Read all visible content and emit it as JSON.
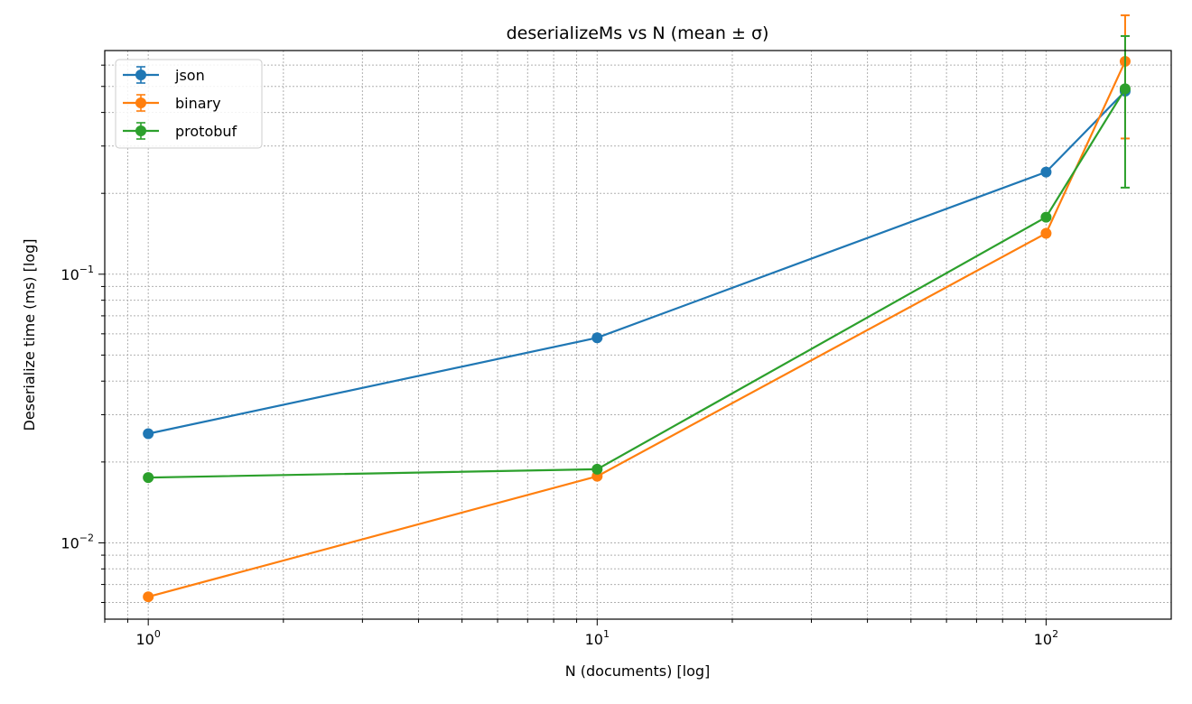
{
  "chart_data": {
    "type": "line",
    "title": "deserializeMs vs N (mean ± σ)",
    "xlabel": "N (documents) [log]",
    "ylabel": "Deserialize time (ms) [log]",
    "xscale": "log",
    "yscale": "log",
    "xlim": [
      0.8,
      190
    ],
    "ylim": [
      0.0052,
      0.68
    ],
    "x_major_ticks": [
      {
        "value": 1,
        "base": "10",
        "exp": "0"
      },
      {
        "value": 10,
        "base": "10",
        "exp": "1"
      },
      {
        "value": 100,
        "base": "10",
        "exp": "2"
      }
    ],
    "y_major_ticks": [
      {
        "value": 0.01,
        "base": "10",
        "exp": "−2"
      },
      {
        "value": 0.1,
        "base": "10",
        "exp": "−1"
      }
    ],
    "grid": true,
    "legend_position": "top-left",
    "series": [
      {
        "name": "json",
        "color": "#1f77b4",
        "x": [
          1,
          10,
          100,
          150
        ],
        "y": [
          0.0255,
          0.058,
          0.24,
          0.48
        ],
        "yerr": [
          0,
          0,
          0,
          0
        ]
      },
      {
        "name": "binary",
        "color": "#ff7f0e",
        "x": [
          1,
          10,
          100,
          150
        ],
        "y": [
          0.0063,
          0.0177,
          0.142,
          0.62
        ],
        "yerr": [
          0,
          0,
          0,
          0.3
        ]
      },
      {
        "name": "protobuf",
        "color": "#2ca02c",
        "x": [
          1,
          10,
          100,
          150
        ],
        "y": [
          0.0175,
          0.0188,
          0.163,
          0.49
        ],
        "yerr": [
          0,
          0,
          0,
          0.28
        ]
      }
    ]
  }
}
